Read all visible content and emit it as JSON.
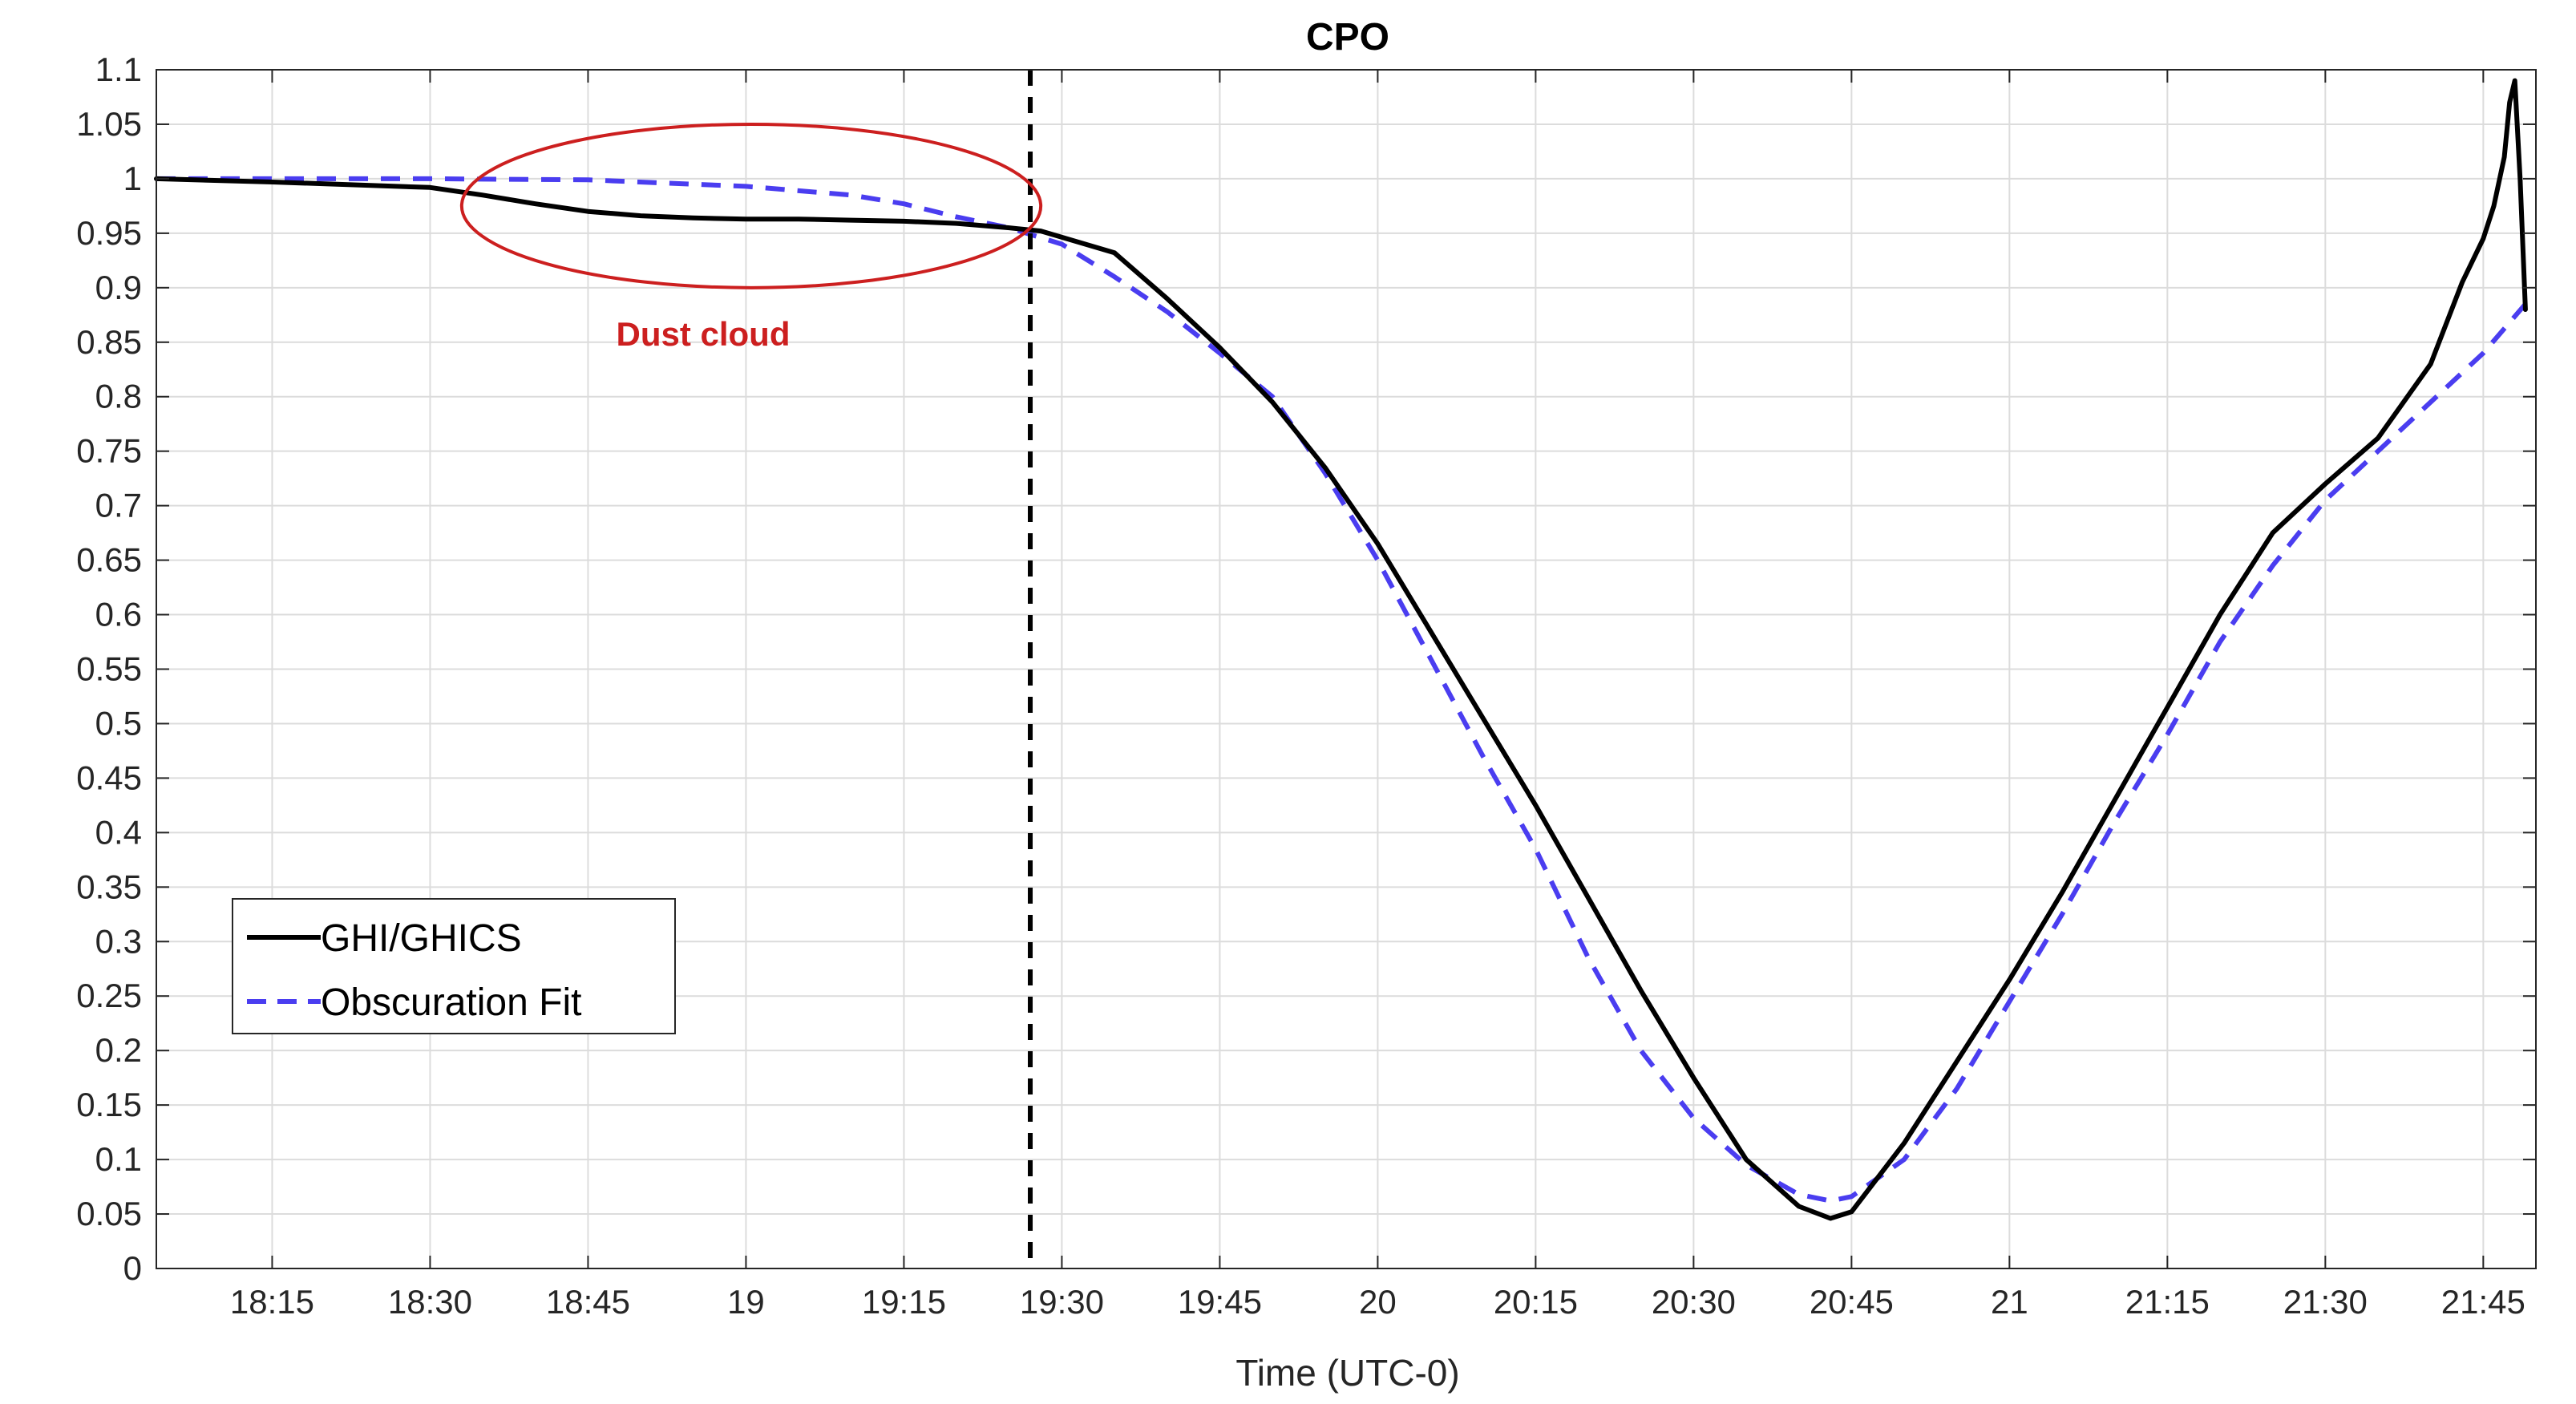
{
  "chart_data": {
    "type": "line",
    "title": "CPO",
    "xlabel": "Time (UTC-0)",
    "ylabel": "",
    "x_unit": "HH:MM UTC",
    "xlim": [
      "18:04",
      "21:50"
    ],
    "ylim": [
      0,
      1.1
    ],
    "grid": true,
    "legend_position": "lower-left",
    "x_tick_times": [
      "18:15",
      "18:30",
      "18:45",
      "19:00",
      "19:15",
      "19:30",
      "19:45",
      "20:00",
      "20:15",
      "20:30",
      "20:45",
      "21:00",
      "21:15",
      "21:30",
      "21:45"
    ],
    "x_tick_labels": [
      "18:15",
      "18:30",
      "18:45",
      "19",
      "19:15",
      "19:30",
      "19:45",
      "20",
      "20:15",
      "20:30",
      "20:45",
      "21",
      "21:15",
      "21:30",
      "21:45"
    ],
    "y_ticks": [
      0,
      0.05,
      0.1,
      0.15,
      0.2,
      0.25,
      0.3,
      0.35,
      0.4,
      0.45,
      0.5,
      0.55,
      0.6,
      0.65,
      0.7,
      0.75,
      0.8,
      0.85,
      0.9,
      0.95,
      1,
      1.05,
      1.1
    ],
    "y_tick_labels": [
      "0",
      "0.05",
      "0.1",
      "0.15",
      "0.2",
      "0.25",
      "0.3",
      "0.35",
      "0.4",
      "0.45",
      "0.5",
      "0.55",
      "0.6",
      "0.65",
      "0.7",
      "0.75",
      "0.8",
      "0.85",
      "0.9",
      "0.95",
      "1",
      "1.05",
      "1.1"
    ],
    "series": [
      {
        "name": "GHI/GHICS",
        "color": "#000000",
        "style": "solid",
        "x": [
          "18:04",
          "18:15",
          "18:30",
          "18:35",
          "18:40",
          "18:45",
          "18:50",
          "18:55",
          "19:00",
          "19:05",
          "19:10",
          "19:15",
          "19:20",
          "19:25",
          "19:28",
          "19:35",
          "19:40",
          "19:45",
          "19:50",
          "19:55",
          "20:00",
          "20:05",
          "20:10",
          "20:15",
          "20:20",
          "20:25",
          "20:30",
          "20:35",
          "20:40",
          "20:43",
          "20:45",
          "20:50",
          "20:55",
          "21:00",
          "21:05",
          "21:10",
          "21:15",
          "21:20",
          "21:25",
          "21:30",
          "21:35",
          "21:40",
          "21:43",
          "21:45",
          "21:46",
          "21:47",
          "21:47.5",
          "21:48",
          "21:48.5",
          "21:49"
        ],
        "y": [
          1.0,
          0.997,
          0.992,
          0.985,
          0.977,
          0.97,
          0.966,
          0.964,
          0.963,
          0.963,
          0.962,
          0.961,
          0.959,
          0.955,
          0.952,
          0.932,
          0.89,
          0.845,
          0.795,
          0.735,
          0.665,
          0.585,
          0.505,
          0.425,
          0.34,
          0.255,
          0.175,
          0.1,
          0.057,
          0.046,
          0.052,
          0.115,
          0.19,
          0.265,
          0.345,
          0.43,
          0.515,
          0.6,
          0.675,
          0.72,
          0.762,
          0.83,
          0.905,
          0.945,
          0.975,
          1.02,
          1.07,
          1.09,
          1.0,
          0.88
        ]
      },
      {
        "name": "Obscuration Fit",
        "color": "#4a3df0",
        "style": "dashed",
        "x": [
          "18:04",
          "18:15",
          "18:30",
          "18:45",
          "19:00",
          "19:10",
          "19:15",
          "19:20",
          "19:25",
          "19:30",
          "19:35",
          "19:40",
          "19:45",
          "19:50",
          "19:55",
          "20:00",
          "20:05",
          "20:10",
          "20:15",
          "20:20",
          "20:25",
          "20:30",
          "20:35",
          "20:40",
          "20:43",
          "20:45",
          "20:50",
          "20:55",
          "21:00",
          "21:05",
          "21:10",
          "21:15",
          "21:20",
          "21:25",
          "21:30",
          "21:35",
          "21:40",
          "21:45",
          "21:49"
        ],
        "y": [
          1.0,
          1.0,
          1.0,
          0.999,
          0.993,
          0.985,
          0.977,
          0.965,
          0.955,
          0.94,
          0.91,
          0.878,
          0.84,
          0.8,
          0.73,
          0.65,
          0.56,
          0.47,
          0.385,
          0.285,
          0.2,
          0.138,
          0.095,
          0.068,
          0.062,
          0.066,
          0.1,
          0.165,
          0.245,
          0.325,
          0.41,
          0.49,
          0.575,
          0.645,
          0.705,
          0.75,
          0.795,
          0.84,
          0.885
        ]
      }
    ],
    "annotations": {
      "vertical_line_time": "19:27",
      "vertical_line_color": "#000000",
      "ellipse_label": "Dust cloud",
      "ellipse_color": "#cc1f1f",
      "ellipse_time_range": [
        "18:33",
        "19:28"
      ],
      "ellipse_y_range": [
        0.9,
        1.05
      ]
    }
  }
}
